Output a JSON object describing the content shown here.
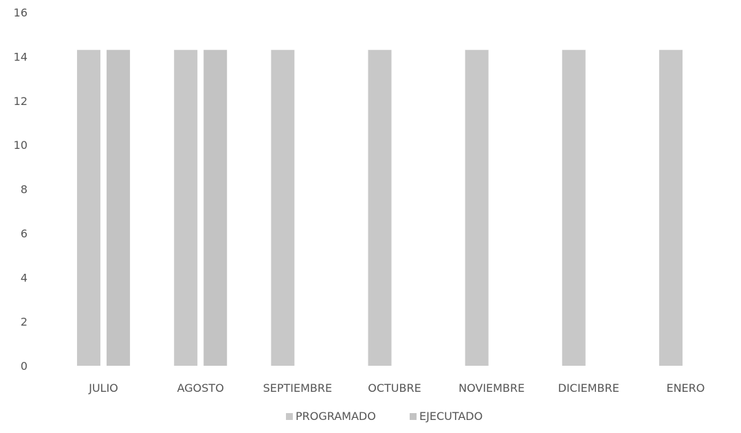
{
  "chart_data": {
    "type": "bar",
    "title": "",
    "xlabel": "",
    "ylabel": "",
    "categories": [
      "JULIO",
      "AGOSTO",
      "SEPTIEMBRE",
      "OCTUBRE",
      "NOVIEMBRE",
      "DICIEMBRE",
      "ENERO"
    ],
    "series": [
      {
        "name": "PROGRAMADO",
        "color": "#c8c8c8",
        "values": [
          14.3,
          14.3,
          14.3,
          14.3,
          14.3,
          14.3,
          14.3
        ]
      },
      {
        "name": "EJECUTADO",
        "color": "#c3c3c3",
        "values": [
          14.3,
          14.3,
          null,
          null,
          null,
          null,
          null
        ]
      }
    ],
    "ylim": [
      0,
      16
    ],
    "yticks": [
      "0",
      "2",
      "4",
      "6",
      "8",
      "10",
      "12",
      "14",
      "16"
    ],
    "grid": false,
    "legend": "bottom"
  }
}
